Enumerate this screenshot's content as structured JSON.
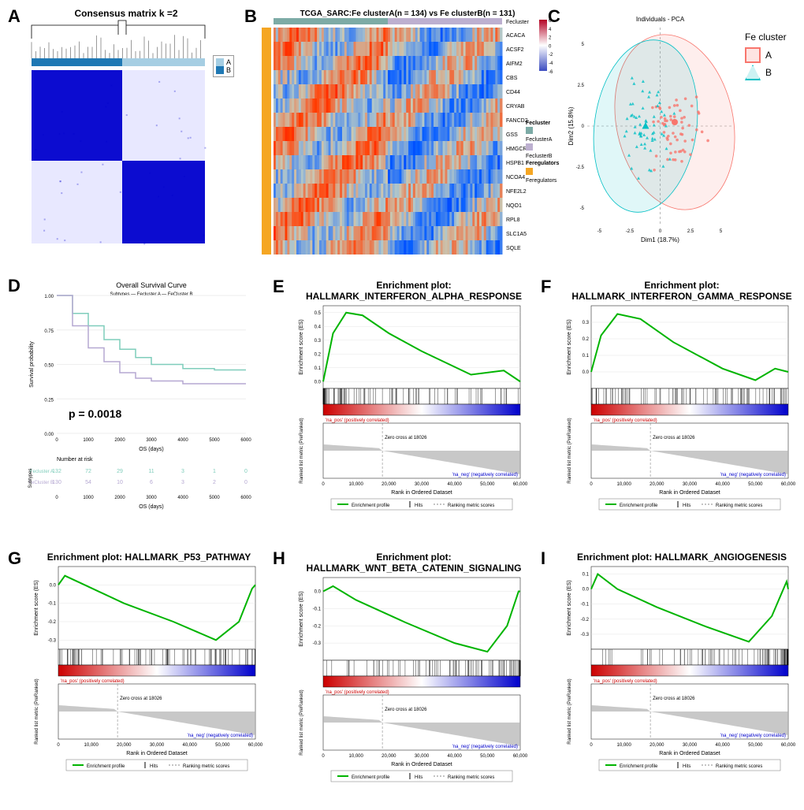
{
  "A": {
    "label": "A",
    "title": "Consensus matrix k =2",
    "legend": [
      "A",
      "B"
    ],
    "legend_colors": [
      "#a6cee3",
      "#1f78b4"
    ],
    "matrix_color": "#0000cd",
    "background": "#ffffff"
  },
  "B": {
    "label": "B",
    "title": "TCGA_SARC:Fe clusterA(n = 134) vs Fe clusterB(n = 131)",
    "genes": [
      "ACACA",
      "ACSF2",
      "AIFM2",
      "CBS",
      "CD44",
      "CRYAB",
      "FANCD2",
      "GSS",
      "HMGCR",
      "HSPB1",
      "NCOA4",
      "NFE2L2",
      "NQO1",
      "RPL8",
      "SLC1A5",
      "SQLE"
    ],
    "colorbar": {
      "min": -6,
      "max": 6,
      "colors": [
        "#3b4cc0",
        "#ffffff",
        "#b40426"
      ]
    },
    "annotation_legend": {
      "Fecluster": {
        "FeclusterA": "#7daba6",
        "FeclusterB": "#bdb0d0"
      },
      "Feregulators": {
        "Feregulators": "#f5a623"
      }
    },
    "top_bar_colors": [
      "#7daba6",
      "#bdb0d0"
    ],
    "side_bar_color": "#f5a623"
  },
  "C": {
    "label": "C",
    "title": "Individuals - PCA",
    "xlabel": "Dim1 (18.7%)",
    "ylabel": "Dim2 (15.8%)",
    "legend_title": "Fe cluster",
    "groups": [
      {
        "name": "A",
        "color": "#f8766d",
        "shape": "circle"
      },
      {
        "name": "B",
        "color": "#00bfc4",
        "shape": "triangle"
      }
    ],
    "xlim": [
      -6,
      6
    ],
    "ylim": [
      -6,
      6
    ],
    "ticks": [
      -5,
      -2.5,
      0,
      2.5,
      5
    ]
  },
  "D": {
    "label": "D",
    "title": "Overall Survival Curve",
    "xlabel": "OS (days)",
    "ylabel": "Survival probability",
    "pvalue": "p = 0.0018",
    "subtypes_label": "Subtypes",
    "curves": [
      {
        "name": "Fecluster A",
        "color": "#7fcdbb",
        "x": [
          0,
          500,
          1000,
          1500,
          2000,
          2500,
          3000,
          4000,
          5000,
          6000
        ],
        "y": [
          1.0,
          0.87,
          0.78,
          0.68,
          0.61,
          0.55,
          0.5,
          0.47,
          0.46,
          0.46
        ]
      },
      {
        "name": "FeCluster B",
        "color": "#b5a8d2",
        "x": [
          0,
          500,
          1000,
          1500,
          2000,
          2500,
          3000,
          4000,
          5000,
          6000
        ],
        "y": [
          1.0,
          0.78,
          0.62,
          0.52,
          0.44,
          0.4,
          0.38,
          0.36,
          0.36,
          0.36
        ]
      }
    ],
    "xticks": [
      0,
      1000,
      2000,
      3000,
      4000,
      5000,
      6000
    ],
    "yticks": [
      0,
      0.25,
      0.5,
      0.75,
      1.0
    ],
    "risk_table": {
      "title": "Number at risk",
      "rows": [
        {
          "label": "Fecluster A",
          "color": "#7fcdbb",
          "vals": [
            132,
            72,
            29,
            11,
            3,
            1,
            0
          ]
        },
        {
          "label": "FeCluster B",
          "color": "#b5a8d2",
          "vals": [
            130,
            54,
            10,
            6,
            3,
            2,
            0
          ]
        }
      ],
      "xticks": [
        0,
        1000,
        2000,
        3000,
        4000,
        5000,
        6000
      ]
    }
  },
  "gsea_common": {
    "xticks": [
      0,
      10000,
      20000,
      30000,
      40000,
      50000,
      60000
    ],
    "xtick_labels": [
      "0",
      "10,000",
      "20,000",
      "30,000",
      "40,000",
      "50,000",
      "60,000"
    ],
    "xlabel": "Rank in Ordered Dataset",
    "ylabel_es": "Enrichment score (ES)",
    "ylabel_rank": "Ranked list metric (PreRanked)",
    "na_pos": "'na_pos' (positively correlated)",
    "na_neg": "'na_neg' (negatively correlated)",
    "legend": [
      "Enrichment profile",
      "Hits",
      "Ranking metric scores"
    ],
    "zero_cross": "Zero cross at 18026",
    "es_profile_color": "#00b400",
    "hits_color": "#000000",
    "gradient_colors": [
      "#cc0000",
      "#ffffff",
      "#0000cc"
    ],
    "rank_fill": "#b0b0b0"
  },
  "E": {
    "label": "E",
    "plot_title": "Enrichment plot:",
    "name": "HALLMARK_INTERFERON_ALPHA_RESPONSE",
    "es_yticks": [
      0.0,
      0.1,
      0.2,
      0.3,
      0.4,
      0.5
    ],
    "es_ylim": [
      -0.05,
      0.55
    ],
    "curve": [
      [
        0,
        0
      ],
      [
        3000,
        0.35
      ],
      [
        7000,
        0.5
      ],
      [
        12000,
        0.48
      ],
      [
        20000,
        0.35
      ],
      [
        30000,
        0.22
      ],
      [
        45000,
        0.05
      ],
      [
        55000,
        0.08
      ],
      [
        60000,
        0.0
      ]
    ],
    "hits_dist": "front"
  },
  "F": {
    "label": "F",
    "plot_title": "Enrichment plot:",
    "name": "HALLMARK_INTERFERON_GAMMA_RESPONSE",
    "es_yticks": [
      0.0,
      0.1,
      0.2,
      0.3
    ],
    "es_ylim": [
      -0.1,
      0.4
    ],
    "curve": [
      [
        0,
        0
      ],
      [
        3000,
        0.22
      ],
      [
        8000,
        0.35
      ],
      [
        15000,
        0.32
      ],
      [
        25000,
        0.18
      ],
      [
        40000,
        0.02
      ],
      [
        50000,
        -0.05
      ],
      [
        56000,
        0.02
      ],
      [
        60000,
        0.0
      ]
    ],
    "hits_dist": "spread"
  },
  "G": {
    "label": "G",
    "plot_title": "Enrichment plot: HALLMARK_P53_PATHWAY",
    "name": "",
    "es_yticks": [
      -0.3,
      -0.2,
      -0.1,
      0.0
    ],
    "es_ylim": [
      -0.35,
      0.1
    ],
    "curve": [
      [
        0,
        0
      ],
      [
        2000,
        0.05
      ],
      [
        8000,
        0.0
      ],
      [
        20000,
        -0.1
      ],
      [
        35000,
        -0.2
      ],
      [
        48000,
        -0.3
      ],
      [
        55000,
        -0.2
      ],
      [
        59000,
        -0.02
      ],
      [
        60000,
        0
      ]
    ],
    "hits_dist": "spread"
  },
  "H": {
    "label": "H",
    "plot_title": "Enrichment plot:",
    "name": "HALLMARK_WNT_BETA_CATENIN_SIGNALING",
    "es_yticks": [
      -0.3,
      -0.2,
      -0.1,
      0.0
    ],
    "es_ylim": [
      -0.4,
      0.08
    ],
    "curve": [
      [
        0,
        0
      ],
      [
        3000,
        0.03
      ],
      [
        10000,
        -0.05
      ],
      [
        25000,
        -0.18
      ],
      [
        40000,
        -0.3
      ],
      [
        50000,
        -0.35
      ],
      [
        56000,
        -0.2
      ],
      [
        59500,
        0.0
      ],
      [
        60000,
        0
      ]
    ],
    "hits_dist": "back"
  },
  "I": {
    "label": "I",
    "plot_title": "Enrichment plot: HALLMARK_ANGIOGENESIS",
    "name": "",
    "es_yticks": [
      -0.3,
      -0.2,
      -0.1,
      0.0,
      0.1
    ],
    "es_ylim": [
      -0.4,
      0.15
    ],
    "curve": [
      [
        0,
        0
      ],
      [
        2000,
        0.1
      ],
      [
        8000,
        0.0
      ],
      [
        20000,
        -0.12
      ],
      [
        35000,
        -0.25
      ],
      [
        48000,
        -0.35
      ],
      [
        55000,
        -0.18
      ],
      [
        59500,
        0.05
      ],
      [
        60000,
        0
      ]
    ],
    "hits_dist": "back"
  }
}
